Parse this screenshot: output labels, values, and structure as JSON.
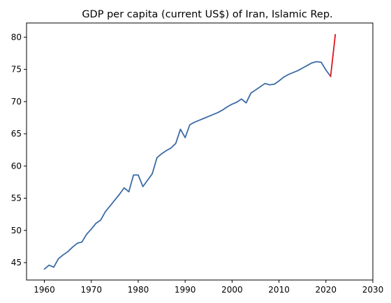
{
  "chart_data": {
    "type": "line",
    "title": "GDP per capita (current US$) of Iran, Islamic Rep.",
    "xlabel": "",
    "ylabel": "",
    "xlim": [
      1956.2,
      2030
    ],
    "ylim": [
      42.3,
      82.2
    ],
    "x_ticks": [
      1960,
      1970,
      1980,
      1990,
      2000,
      2010,
      2020,
      2030
    ],
    "y_ticks": [
      45,
      50,
      55,
      60,
      65,
      70,
      75,
      80
    ],
    "grid": false,
    "series": [
      {
        "color": "#3b6ba5",
        "x": [
          1960,
          1961,
          1962,
          1963,
          1964,
          1965,
          1966,
          1967,
          1968,
          1969,
          1970,
          1971,
          1972,
          1973,
          1974,
          1975,
          1976,
          1977,
          1978,
          1979,
          1980,
          1981,
          1982,
          1983,
          1984,
          1985,
          1986,
          1987,
          1988,
          1989,
          1990,
          1991,
          1992,
          1993,
          1994,
          1995,
          1996,
          1997,
          1998,
          1999,
          2000,
          2001,
          2002,
          2003,
          2004,
          2005,
          2006,
          2007,
          2008,
          2009,
          2010,
          2011,
          2012,
          2013,
          2014,
          2015,
          2016,
          2017,
          2018,
          2019,
          2020,
          2021
        ],
        "y": [
          44.0,
          44.6,
          44.3,
          45.6,
          46.2,
          46.7,
          47.4,
          48.0,
          48.2,
          49.4,
          50.2,
          51.1,
          51.6,
          52.9,
          53.8,
          54.7,
          55.6,
          56.6,
          56.0,
          58.6,
          58.6,
          56.8,
          57.8,
          58.8,
          61.3,
          61.9,
          62.4,
          62.8,
          63.5,
          65.7,
          64.4,
          66.4,
          66.8,
          67.1,
          67.4,
          67.7,
          68.0,
          68.3,
          68.7,
          69.2,
          69.6,
          69.9,
          70.4,
          69.8,
          71.3,
          71.8,
          72.3,
          72.8,
          72.6,
          72.7,
          73.2,
          73.8,
          74.2,
          74.5,
          74.8,
          75.2,
          75.6,
          76.0,
          76.2,
          76.1,
          74.9,
          73.9
        ]
      },
      {
        "color": "#e0141e",
        "x": [
          2021,
          2022
        ],
        "y": [
          73.9,
          80.4
        ]
      }
    ]
  }
}
